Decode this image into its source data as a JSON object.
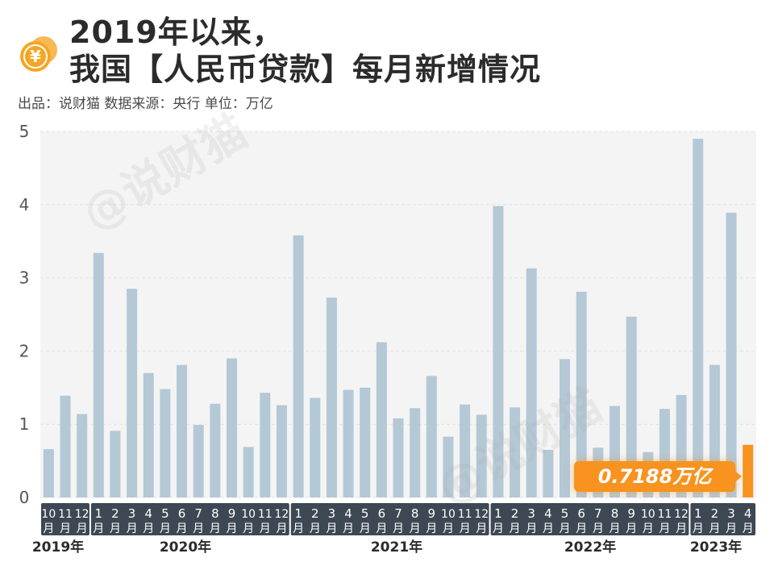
{
  "header": {
    "title_line1": "2019年以来，",
    "title_line2": "我国【人民币贷款】每月新增情况",
    "source_line": "出品：说财猫   数据来源：央行   单位：万亿",
    "coin_glyph": "¥"
  },
  "watermark_text": "@说财猫",
  "callout": {
    "text": "0.7188万亿"
  },
  "colors": {
    "bar": "#b4c8d6",
    "highlight": "#f7931e",
    "axis_band": "#3d4854",
    "plot_bg": "#f4f4f4",
    "coin": "#f5a623"
  },
  "chart_data": {
    "type": "bar",
    "title": "",
    "xlabel": "",
    "ylabel": "",
    "ylim": [
      0,
      5
    ],
    "yticks": [
      "0",
      "1",
      "2",
      "3",
      "4",
      "5"
    ],
    "categories": [
      "10月",
      "11月",
      "12月",
      "1月",
      "2月",
      "3月",
      "4月",
      "5月",
      "6月",
      "7月",
      "8月",
      "9月",
      "10月",
      "11月",
      "12月",
      "1月",
      "2月",
      "3月",
      "4月",
      "5月",
      "6月",
      "7月",
      "8月",
      "9月",
      "10月",
      "11月",
      "12月",
      "1月",
      "2月",
      "3月",
      "4月",
      "5月",
      "6月",
      "7月",
      "8月",
      "9月",
      "10月",
      "11月",
      "12月",
      "1月",
      "2月",
      "3月",
      "4月"
    ],
    "values": [
      0.66,
      1.39,
      1.14,
      3.34,
      0.91,
      2.85,
      1.7,
      1.48,
      1.81,
      0.99,
      1.28,
      1.9,
      0.69,
      1.43,
      1.26,
      3.58,
      1.36,
      2.73,
      1.47,
      1.5,
      2.12,
      1.08,
      1.22,
      1.66,
      0.83,
      1.27,
      1.13,
      3.98,
      1.23,
      3.13,
      0.65,
      1.89,
      2.81,
      0.68,
      1.25,
      2.47,
      0.62,
      1.21,
      1.4,
      4.9,
      1.81,
      3.89,
      0.7188
    ],
    "highlight_index": 42,
    "year_groups": [
      {
        "label": "2019年",
        "count": 3
      },
      {
        "label": "2020年",
        "count": 12
      },
      {
        "label": "2021年",
        "count": 12
      },
      {
        "label": "2022年",
        "count": 12
      },
      {
        "label": "2023年",
        "count": 4
      }
    ],
    "grid": true
  }
}
